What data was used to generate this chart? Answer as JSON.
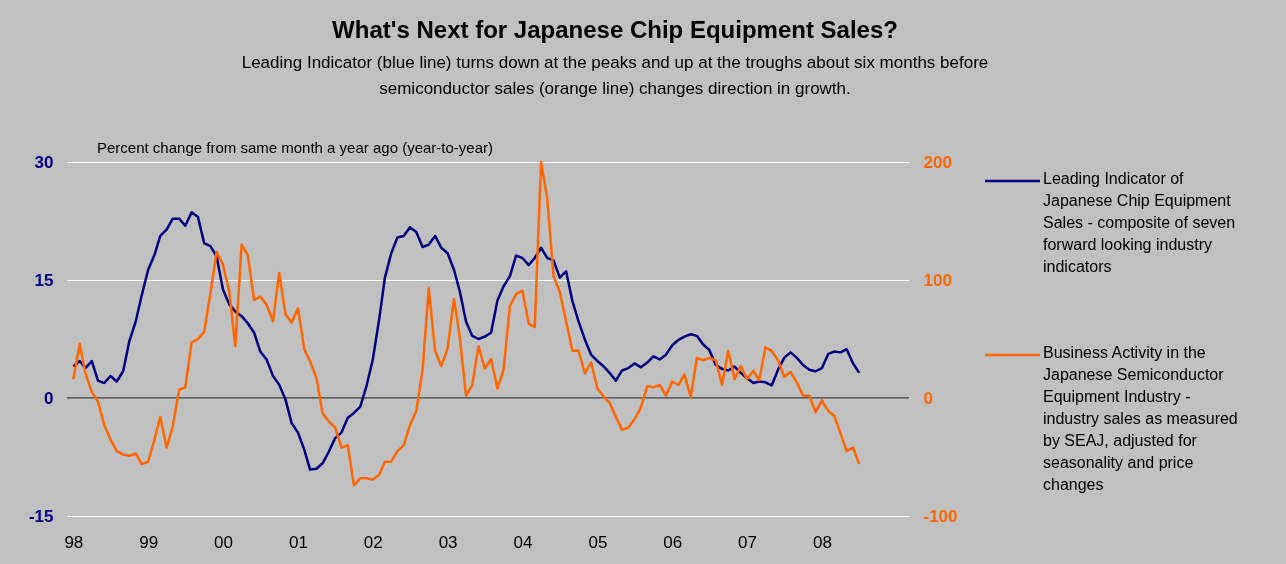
{
  "chart_data": {
    "type": "line",
    "title": "What's Next for Japanese Chip Equipment Sales?",
    "subtitle": "Leading Indicator (blue line) turns down at the peaks and up at the troughs about six months before semiconductor sales (orange line) changes direction in growth.",
    "annotations": [
      "Percent change from same month a year ago (year-to-year)"
    ],
    "x": [
      "1998-01",
      "1998-02",
      "1998-03",
      "1998-04",
      "1998-05",
      "1998-06",
      "1998-07",
      "1998-08",
      "1998-09",
      "1998-10",
      "1998-11",
      "1998-12",
      "1999-01",
      "1999-02",
      "1999-03",
      "1999-04",
      "1999-05",
      "1999-06",
      "1999-07",
      "1999-08",
      "1999-09",
      "1999-10",
      "1999-11",
      "1999-12",
      "2000-01",
      "2000-02",
      "2000-03",
      "2000-04",
      "2000-05",
      "2000-06",
      "2000-07",
      "2000-08",
      "2000-09",
      "2000-10",
      "2000-11",
      "2000-12",
      "2001-01",
      "2001-02",
      "2001-03",
      "2001-04",
      "2001-05",
      "2001-06",
      "2001-07",
      "2001-08",
      "2001-09",
      "2001-10",
      "2001-11",
      "2001-12",
      "2002-01",
      "2002-02",
      "2002-03",
      "2002-04",
      "2002-05",
      "2002-06",
      "2002-07",
      "2002-08",
      "2002-09",
      "2002-10",
      "2002-11",
      "2002-12",
      "2003-01",
      "2003-02",
      "2003-03",
      "2003-04",
      "2003-05",
      "2003-06",
      "2003-07",
      "2003-08",
      "2003-09",
      "2003-10",
      "2003-11",
      "2003-12",
      "2004-01",
      "2004-02",
      "2004-03",
      "2004-04",
      "2004-05",
      "2004-06",
      "2004-07",
      "2004-08",
      "2004-09",
      "2004-10",
      "2004-11",
      "2004-12",
      "2005-01",
      "2005-02",
      "2005-03",
      "2005-04",
      "2005-05",
      "2005-06",
      "2005-07",
      "2005-08",
      "2005-09",
      "2005-10",
      "2005-11",
      "2005-12",
      "2006-01",
      "2006-02",
      "2006-03",
      "2006-04",
      "2006-05",
      "2006-06",
      "2006-07",
      "2006-08",
      "2006-09",
      "2006-10",
      "2006-11",
      "2006-12",
      "2007-01",
      "2007-02",
      "2007-03",
      "2007-04",
      "2007-05",
      "2007-06",
      "2007-07",
      "2007-08",
      "2007-09",
      "2007-10",
      "2007-11",
      "2007-12",
      "2008-01",
      "2008-02",
      "2008-03",
      "2008-04",
      "2008-05",
      "2008-06",
      "2008-07"
    ],
    "series": [
      {
        "name": "Leading Indicator of Japanese Chip Equipment Sales - composite of seven forward looking industry indicators",
        "color": "#000080",
        "values": [
          4.0,
          4.7,
          3.8,
          4.7,
          2.2,
          1.9,
          2.8,
          2.1,
          3.4,
          7.2,
          9.7,
          13.1,
          16.3,
          18.2,
          20.6,
          21.4,
          22.8,
          22.8,
          21.9,
          23.6,
          23.0,
          19.7,
          19.3,
          18.0,
          13.8,
          11.9,
          11.0,
          10.4,
          9.5,
          8.3,
          5.9,
          4.9,
          2.8,
          1.7,
          -0.2,
          -3.2,
          -4.4,
          -6.6,
          -9.1,
          -9.0,
          -8.3,
          -6.8,
          -5.1,
          -4.4,
          -2.5,
          -1.9,
          -1.1,
          1.5,
          4.9,
          10.0,
          15.3,
          18.4,
          20.4,
          20.6,
          21.7,
          21.1,
          19.2,
          19.5,
          20.6,
          19.1,
          18.4,
          16.3,
          13.6,
          9.7,
          7.9,
          7.5,
          7.8,
          8.3,
          12.4,
          14.2,
          15.5,
          18.1,
          17.8,
          16.9,
          17.8,
          19.1,
          17.8,
          17.5,
          15.3,
          16.1,
          12.3,
          9.7,
          7.4,
          5.5,
          4.7,
          4.0,
          3.2,
          2.2,
          3.5,
          3.8,
          4.4,
          3.9,
          4.5,
          5.3,
          4.9,
          5.5,
          6.7,
          7.4,
          7.8,
          8.1,
          7.9,
          6.8,
          6.1,
          4.2,
          3.7,
          3.5,
          4.0,
          3.2,
          2.5,
          1.9,
          2.1,
          2.0,
          1.6,
          3.6,
          5.1,
          5.8,
          5.1,
          4.2,
          3.6,
          3.4,
          3.8,
          5.6,
          5.9,
          5.8,
          6.2,
          4.4,
          3.2
        ]
      },
      {
        "name": "Business Activity in the Japanese Semiconductor Equipment Industry - industry sales as measured by SEAJ, adjusted for seasonality and price changes",
        "color": "#ff6600",
        "axis": "y2",
        "values": [
          16,
          46,
          21,
          5,
          -3,
          -23,
          -35,
          -45,
          -48,
          -49,
          -47,
          -56,
          -54,
          -35,
          -16,
          -42,
          -24,
          7,
          9,
          47,
          50,
          56,
          89,
          124,
          113,
          90,
          44,
          130,
          121,
          83,
          86,
          79,
          65,
          106,
          71,
          64,
          76,
          41,
          31,
          17,
          -13,
          -20,
          -25,
          -42,
          -40,
          -74,
          -68,
          -68,
          -69,
          -65,
          -54,
          -54,
          -45,
          -40,
          -23,
          -11,
          24,
          93,
          40,
          27,
          42,
          84,
          52,
          2,
          11,
          44,
          25,
          33,
          8,
          24,
          78,
          88,
          91,
          63,
          60,
          200,
          169,
          103,
          90,
          65,
          40,
          40,
          21,
          30,
          8,
          1,
          -4,
          -16,
          -27,
          -25,
          -18,
          -8,
          10,
          9,
          11,
          2,
          14,
          11,
          20,
          1,
          34,
          32,
          34,
          32,
          11,
          40,
          16,
          27,
          16,
          23,
          15,
          43,
          40,
          32,
          18,
          22,
          13,
          2,
          2,
          -12,
          -2,
          -11,
          -15,
          -30,
          -45,
          -42,
          -56
        ]
      }
    ],
    "xlim": [
      "1997-12",
      "2009-03"
    ],
    "xticks": [
      {
        "value": "1998-01",
        "label": "98"
      },
      {
        "value": "1999-01",
        "label": "99"
      },
      {
        "value": "2000-01",
        "label": "00"
      },
      {
        "value": "2001-01",
        "label": "01"
      },
      {
        "value": "2002-01",
        "label": "02"
      },
      {
        "value": "2003-01",
        "label": "03"
      },
      {
        "value": "2004-01",
        "label": "04"
      },
      {
        "value": "2005-01",
        "label": "05"
      },
      {
        "value": "2006-01",
        "label": "06"
      },
      {
        "value": "2007-01",
        "label": "07"
      },
      {
        "value": "2008-01",
        "label": "08"
      }
    ],
    "ylim": [
      -15,
      30
    ],
    "yticks": [
      -15,
      0,
      15,
      30
    ],
    "y2lim": [
      -100,
      200
    ],
    "y2ticks": [
      -100,
      0,
      100,
      200
    ],
    "ref_lines": [
      {
        "axis": "y",
        "value": 0,
        "color": "#000000"
      }
    ],
    "grid": "y",
    "legend": "right",
    "marker": "none",
    "line_style": "solid"
  }
}
